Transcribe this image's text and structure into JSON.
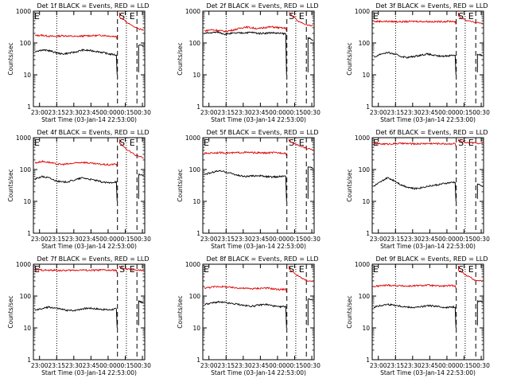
{
  "chart_data": [
    {
      "type": "line",
      "title": "Det 1f BLACK = Events, RED = LLD",
      "xlabel": "Start Time (03-Jan-14 22:53:00)",
      "ylabel": "Counts/sec",
      "x_ticks": [
        "23:00",
        "23:15",
        "23:30",
        "23:45",
        "00:00",
        "00:15",
        "00:30"
      ],
      "y_ticks": [
        "1",
        "10",
        "100",
        "1000"
      ],
      "ylim": [
        1,
        1000
      ],
      "yscale": "log",
      "markers": [
        "E",
        "S",
        "E"
      ],
      "series": [
        {
          "name": "LLD",
          "color": "#e00000",
          "values": [
            170,
            175,
            165,
            160,
            170,
            165,
            160,
            165,
            170,
            170,
            175,
            165,
            160
          ]
        },
        {
          "name": "Events",
          "color": "#000000",
          "values": [
            55,
            60,
            58,
            50,
            45,
            48,
            52,
            60,
            58,
            55,
            50,
            45,
            42
          ]
        }
      ],
      "post_red": [
        650,
        420,
        300,
        250
      ],
      "post_black": [
        85,
        80
      ]
    },
    {
      "type": "line",
      "title": "Det 2f BLACK = Events, RED = LLD",
      "xlabel": "Start Time (03-Jan-14 22:53:00)",
      "ylabel": "Counts/sec",
      "x_ticks": [
        "23:00",
        "23:15",
        "23:30",
        "23:45",
        "00:00",
        "00:15",
        "00:30"
      ],
      "y_ticks": [
        "1",
        "10",
        "100",
        "1000"
      ],
      "ylim": [
        1,
        1000
      ],
      "yscale": "log",
      "markers": [
        "S",
        "E"
      ],
      "series": [
        {
          "name": "LLD",
          "color": "#e00000",
          "values": [
            240,
            260,
            250,
            230,
            250,
            280,
            320,
            300,
            280,
            310,
            320,
            300,
            290
          ]
        },
        {
          "name": "Events",
          "color": "#000000",
          "values": [
            200,
            210,
            220,
            190,
            200,
            205,
            210,
            215,
            200,
            205,
            210,
            200,
            195
          ]
        }
      ],
      "post_red": [
        900,
        500,
        380,
        350
      ],
      "post_black": [
        150,
        120
      ]
    },
    {
      "type": "line",
      "title": "Det 3f BLACK = Events, RED = LLD",
      "xlabel": "Start Time (03-Jan-14 22:53:00)",
      "ylabel": "Counts/sec",
      "x_ticks": [
        "23:00",
        "23:15",
        "23:30",
        "23:45",
        "00:00",
        "00:15",
        "00:30"
      ],
      "y_ticks": [
        "1",
        "10",
        "100",
        "1000"
      ],
      "ylim": [
        1,
        1000
      ],
      "yscale": "log",
      "markers": [
        "E",
        "S",
        "E"
      ],
      "series": [
        {
          "name": "LLD",
          "color": "#e00000",
          "values": [
            470,
            480,
            475,
            470,
            465,
            470,
            480,
            475,
            470,
            465,
            470,
            480,
            475
          ]
        },
        {
          "name": "Events",
          "color": "#000000",
          "values": [
            35,
            45,
            50,
            45,
            38,
            35,
            38,
            42,
            45,
            40,
            38,
            40,
            42
          ]
        }
      ],
      "post_red": [
        700,
        500,
        450,
        420
      ],
      "post_black": [
        45,
        40
      ]
    },
    {
      "type": "line",
      "title": "Det 4f BLACK = Events, RED = LLD",
      "xlabel": "Start Time (03-Jan-14 22:53:00)",
      "ylabel": "Counts/sec",
      "x_ticks": [
        "23:00",
        "23:15",
        "23:30",
        "23:45",
        "00:00",
        "00:15",
        "00:30"
      ],
      "y_ticks": [
        "1",
        "10",
        "100",
        "1000"
      ],
      "ylim": [
        1,
        1000
      ],
      "yscale": "log",
      "markers": [
        "E",
        "S",
        "E"
      ],
      "series": [
        {
          "name": "LLD",
          "color": "#e00000",
          "values": [
            160,
            180,
            170,
            150,
            145,
            150,
            160,
            170,
            160,
            150,
            145,
            140,
            150
          ]
        },
        {
          "name": "Events",
          "color": "#000000",
          "values": [
            50,
            60,
            55,
            45,
            40,
            42,
            48,
            55,
            50,
            45,
            40,
            38,
            42
          ]
        }
      ],
      "post_red": [
        650,
        400,
        280,
        230
      ],
      "post_black": [
        70,
        65
      ]
    },
    {
      "type": "line",
      "title": "Det 5f BLACK = Events, RED = LLD",
      "xlabel": "Start Time (03-Jan-14 22:53:00)",
      "ylabel": "Counts/sec",
      "x_ticks": [
        "23:00",
        "23:15",
        "23:30",
        "23:45",
        "00:00",
        "00:15",
        "00:30"
      ],
      "y_ticks": [
        "1",
        "10",
        "100",
        "1000"
      ],
      "ylim": [
        1,
        1000
      ],
      "yscale": "log",
      "markers": [
        "E",
        "S",
        "E"
      ],
      "series": [
        {
          "name": "LLD",
          "color": "#e00000",
          "values": [
            320,
            330,
            340,
            335,
            330,
            340,
            345,
            340,
            335,
            330,
            340,
            335,
            330
          ]
        },
        {
          "name": "Events",
          "color": "#000000",
          "values": [
            70,
            80,
            90,
            85,
            75,
            65,
            60,
            62,
            65,
            60,
            58,
            60,
            62
          ]
        }
      ],
      "post_red": [
        800,
        600,
        480,
        420
      ],
      "post_black": [
        120,
        110
      ]
    },
    {
      "type": "line",
      "title": "Det 6f BLACK = Events, RED = LLD",
      "xlabel": "Start Time (03-Jan-14 22:53:00)",
      "ylabel": "Counts/sec",
      "x_ticks": [
        "23:00",
        "23:15",
        "23:30",
        "23:45",
        "00:00",
        "00:15",
        "00:30"
      ],
      "y_ticks": [
        "1",
        "10",
        "100",
        "1000"
      ],
      "ylim": [
        1,
        1000
      ],
      "yscale": "log",
      "markers": [
        "E",
        "S",
        "E"
      ],
      "series": [
        {
          "name": "LLD",
          "color": "#e00000",
          "values": [
            650,
            640,
            630,
            650,
            660,
            650,
            640,
            650,
            660,
            655,
            650,
            640,
            660
          ]
        },
        {
          "name": "Events",
          "color": "#000000",
          "values": [
            30,
            40,
            55,
            45,
            33,
            28,
            25,
            27,
            30,
            32,
            35,
            38,
            40
          ]
        }
      ],
      "post_red": [
        800,
        700,
        680,
        650
      ],
      "post_black": [
        35,
        30
      ]
    },
    {
      "type": "line",
      "title": "Det 7f BLACK = Events, RED = LLD",
      "xlabel": "Start Time (03-Jan-14 22:53:00)",
      "ylabel": "Counts/sec",
      "x_ticks": [
        "23:00",
        "23:15",
        "23:30",
        "23:45",
        "00:00",
        "00:15",
        "00:30"
      ],
      "y_ticks": [
        "1",
        "10",
        "100",
        "1000"
      ],
      "ylim": [
        1,
        1000
      ],
      "yscale": "log",
      "markers": [
        "E",
        "S",
        "E"
      ],
      "series": [
        {
          "name": "LLD",
          "color": "#e00000",
          "values": [
            650,
            660,
            640,
            650,
            630,
            640,
            650,
            660,
            640,
            650,
            660,
            640,
            650
          ]
        },
        {
          "name": "Events",
          "color": "#000000",
          "values": [
            35,
            40,
            45,
            42,
            38,
            35,
            36,
            40,
            42,
            40,
            38,
            37,
            40
          ]
        }
      ],
      "post_red": [
        800,
        700,
        650,
        640
      ],
      "post_black": [
        70,
        60
      ]
    },
    {
      "type": "line",
      "title": "Det 8f BLACK = Events, RED = LLD",
      "xlabel": "Start Time (03-Jan-14 22:53:00)",
      "ylabel": "Counts/sec",
      "x_ticks": [
        "23:00",
        "23:15",
        "23:30",
        "23:45",
        "00:00",
        "00:15",
        "00:30"
      ],
      "y_ticks": [
        "1",
        "10",
        "100",
        "1000"
      ],
      "ylim": [
        1,
        1000
      ],
      "yscale": "log",
      "markers": [
        "E",
        "S",
        "E"
      ],
      "series": [
        {
          "name": "LLD",
          "color": "#e00000",
          "values": [
            180,
            190,
            200,
            195,
            185,
            180,
            175,
            170,
            175,
            180,
            170,
            160,
            165
          ]
        },
        {
          "name": "Events",
          "color": "#000000",
          "values": [
            55,
            60,
            65,
            62,
            58,
            55,
            50,
            48,
            52,
            55,
            50,
            45,
            48
          ]
        }
      ],
      "post_red": [
        700,
        450,
        320,
        280
      ],
      "post_black": [
        80,
        75
      ]
    },
    {
      "type": "line",
      "title": "Det 9f BLACK = Events, RED = LLD",
      "xlabel": "Start Time (03-Jan-14 22:53:00)",
      "ylabel": "Counts/sec",
      "x_ticks": [
        "23:00",
        "23:15",
        "23:30",
        "23:45",
        "00:00",
        "00:15",
        "00:30"
      ],
      "y_ticks": [
        "1",
        "10",
        "100",
        "1000"
      ],
      "ylim": [
        1,
        1000
      ],
      "yscale": "log",
      "markers": [
        "E",
        "S",
        "E"
      ],
      "series": [
        {
          "name": "LLD",
          "color": "#e00000",
          "values": [
            200,
            210,
            220,
            215,
            210,
            205,
            210,
            215,
            220,
            210,
            205,
            210,
            215
          ]
        },
        {
          "name": "Events",
          "color": "#000000",
          "values": [
            45,
            50,
            55,
            52,
            48,
            45,
            44,
            46,
            50,
            48,
            45,
            44,
            46
          ]
        }
      ],
      "post_red": [
        650,
        450,
        320,
        290
      ],
      "post_black": [
        70,
        65
      ]
    }
  ]
}
